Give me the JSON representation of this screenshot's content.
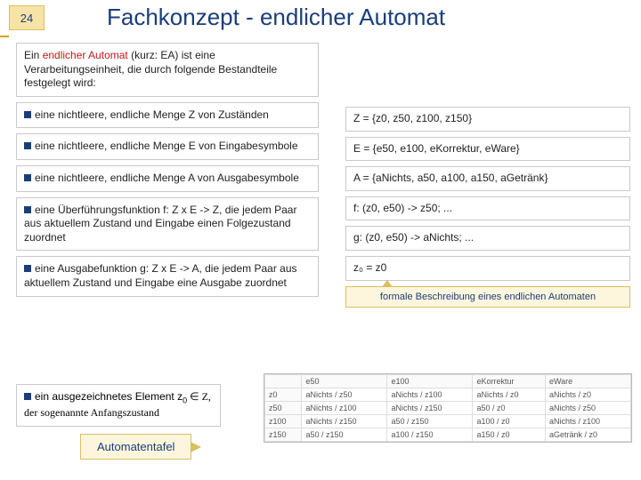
{
  "slideNumber": "24",
  "title": "Fachkonzept - endlicher Automat",
  "intro": {
    "prefix": "Ein ",
    "highlight": "endlicher Automat",
    "suffix": " (kurz: EA) ist eine Verarbeitungseinheit, die durch folgende Bestandteile festgelegt wird:"
  },
  "defs": [
    "eine nichtleere, endliche Menge Z von Zuständen",
    "eine nichtleere, endliche Menge E von Eingabesymbole",
    "eine nichtleere, endliche Menge A von Ausgabesymbole",
    "eine Überführungsfunktion f: Z x E -> Z, die jedem Paar aus aktuellem Zustand und Eingabe einen Folgezustand zuordnet",
    "eine Ausgabefunktion g: Z x E -> A, die jedem Paar aus aktuellem Zustand und Eingabe eine Ausgabe zuordnet"
  ],
  "lastDef": {
    "pre": "ein ausgezeichnetes Element z",
    "sub": "0",
    "mid": " ∈ Z, der sogenannte Anfangszustand"
  },
  "examples": [
    "Z = {z0, z50, z100, z150}",
    "E = {e50, e100, eKorrektur, eWare}",
    "A = {aNichts, a50, a100, a150, aGetränk}",
    "f: (z0, e50) -> z50; ...",
    "g: (z0, e50) -> aNichts; ...",
    "z₀ = z0"
  ],
  "caption": "formale Beschreibung eines endlichen Automaten",
  "tafelLabel": "Automatentafel",
  "table": {
    "headers": [
      "",
      "e50",
      "e100",
      "eKorrektur",
      "eWare"
    ],
    "rows": [
      [
        "z0",
        "aNichts / z50",
        "aNichts / z100",
        "aNichts / z0",
        "aNichts / z0"
      ],
      [
        "z50",
        "aNichts / z100",
        "aNichts / z150",
        "a50 / z0",
        "aNichts / z50"
      ],
      [
        "z100",
        "aNichts / z150",
        "a50 / z150",
        "a100 / z0",
        "aNichts / z100"
      ],
      [
        "z150",
        "a50 / z150",
        "a100 / z150",
        "a150 / z0",
        "aGetränk / z0"
      ]
    ]
  }
}
